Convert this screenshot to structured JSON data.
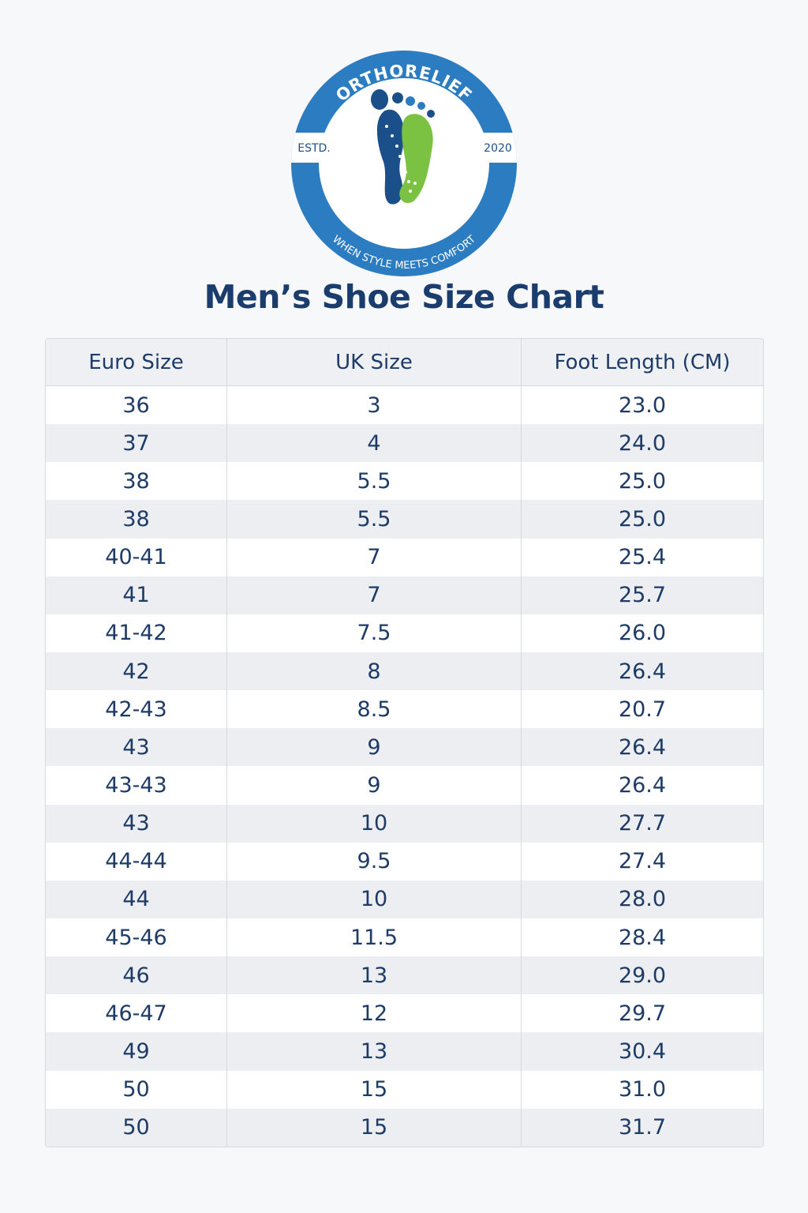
{
  "logo": {
    "brand": "ORTHORELIEF",
    "established_label": "ESTD.",
    "established_year": "2020",
    "tagline": "WHEN STYLE MEETS COMFORT"
  },
  "title": "Men’s Shoe Size Chart",
  "table": {
    "headers": [
      "Euro Size",
      "UK Size",
      "Foot Length (CM)"
    ],
    "rows": [
      [
        "36",
        "3",
        "23.0"
      ],
      [
        "37",
        "4",
        "24.0"
      ],
      [
        "38",
        "5.5",
        "25.0"
      ],
      [
        "38",
        "5.5",
        "25.0"
      ],
      [
        "40-41",
        "7",
        "25.4"
      ],
      [
        "41",
        "7",
        "25.7"
      ],
      [
        "41-42",
        "7.5",
        "26.0"
      ],
      [
        "42",
        "8",
        "26.4"
      ],
      [
        "42-43",
        "8.5",
        "20.7"
      ],
      [
        "43",
        "9",
        "26.4"
      ],
      [
        "43-43",
        "9",
        "26.4"
      ],
      [
        "43",
        "10",
        "27.7"
      ],
      [
        "44-44",
        "9.5",
        "27.4"
      ],
      [
        "44",
        "10",
        "28.0"
      ],
      [
        "45-46",
        "11.5",
        "28.4"
      ],
      [
        "46",
        "13",
        "29.0"
      ],
      [
        "46-47",
        "12",
        "29.7"
      ],
      [
        "49",
        "13",
        "30.4"
      ],
      [
        "50",
        "15",
        "31.0"
      ],
      [
        "50",
        "15",
        "31.7"
      ]
    ]
  }
}
